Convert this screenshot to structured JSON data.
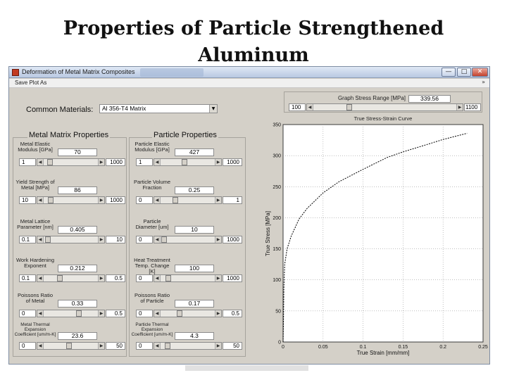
{
  "slide": {
    "title_line1": "Properties of Particle Strengthened",
    "title_line2": "Aluminum"
  },
  "window": {
    "title": "Deformation of Metal Matrix Composites",
    "controls": {
      "minimize": "—",
      "maximize": "□",
      "close": "✕"
    },
    "icon": "matlab-figure-icon"
  },
  "menu": {
    "save_plot": "Save Plot As",
    "chevron": "»"
  },
  "materials": {
    "label": "Common Materials:",
    "selected": "Al 356-T4 Matrix"
  },
  "sections": {
    "matrix": "Metal Matrix Properties",
    "particle": "Particle Properties"
  },
  "graph_range": {
    "label": "Graph Stress Range [MPa]",
    "value": "339.56",
    "min": "100",
    "max": "1100",
    "level": 0.24
  },
  "matrix_props": [
    {
      "label": "Metal Elastic\nModulus [GPa]",
      "value": "70",
      "min": "1",
      "max": "1000",
      "level": 0.07
    },
    {
      "label": "Yield Strength of\nMetal [MPa]",
      "value": "86",
      "min": "10",
      "max": "1000",
      "level": 0.08
    },
    {
      "label": "Metal Lattice\nParameter [nm]",
      "value": "0.405",
      "min": "0.1",
      "max": "10",
      "level": 0.03
    },
    {
      "label": "Work Hardening\nExponent",
      "value": "0.212",
      "min": "0.1",
      "max": "0.5",
      "level": 0.28
    },
    {
      "label": "Poissons Ratio\nof Metal",
      "value": "0.33",
      "min": "0",
      "max": "0.5",
      "level": 0.66
    },
    {
      "label": "Metal Thermal\nExpansion\nCoefficient [um/m-K]",
      "value": "23.6",
      "min": "0",
      "max": "50",
      "level": 0.47
    }
  ],
  "particle_props": [
    {
      "label": "Particle Elastic\nModulus [GPa]",
      "value": "427",
      "min": "1",
      "max": "1000",
      "level": 0.43
    },
    {
      "label": "Particle Volume\nFraction",
      "value": "0.25",
      "min": "0",
      "max": "1",
      "level": 0.25
    },
    {
      "label": "Particle\nDiameter [um]",
      "value": "10",
      "min": "0",
      "max": "1000",
      "level": 0.01
    },
    {
      "label": "Heat Treatment\nTemp. Change [K]",
      "value": "100",
      "min": "0",
      "max": "1000",
      "level": 0.1
    },
    {
      "label": "Poissons Ratio\nof Particle",
      "value": "0.17",
      "min": "0",
      "max": "0.5",
      "level": 0.34
    },
    {
      "label": "Particle Thermal\nExpansion\nCoefficient [um/m-K]",
      "value": "4.3",
      "min": "0",
      "max": "50",
      "level": 0.09
    }
  ],
  "chart_data": {
    "type": "line",
    "title": "True Stress-Strain Curve",
    "xlabel": "True Strain [mm/mm]",
    "ylabel": "True Stress [MPa]",
    "xlim": [
      0,
      0.25
    ],
    "ylim": [
      0,
      350
    ],
    "xticks": [
      "0",
      "0.05",
      "0.1",
      "0.15",
      "0.2",
      "0.25"
    ],
    "yticks": [
      "0",
      "50",
      "100",
      "150",
      "200",
      "250",
      "300",
      "350"
    ],
    "x": [
      0,
      0.0005,
      0.001,
      0.002,
      0.005,
      0.01,
      0.02,
      0.03,
      0.05,
      0.07,
      0.1,
      0.13,
      0.15,
      0.18,
      0.2,
      0.23
    ],
    "y": [
      0,
      35,
      86,
      125,
      150,
      170,
      198,
      215,
      240,
      258,
      278,
      297,
      306,
      318,
      326,
      336
    ],
    "grid": true,
    "line_style": "dashed",
    "line_color": "#000000"
  }
}
